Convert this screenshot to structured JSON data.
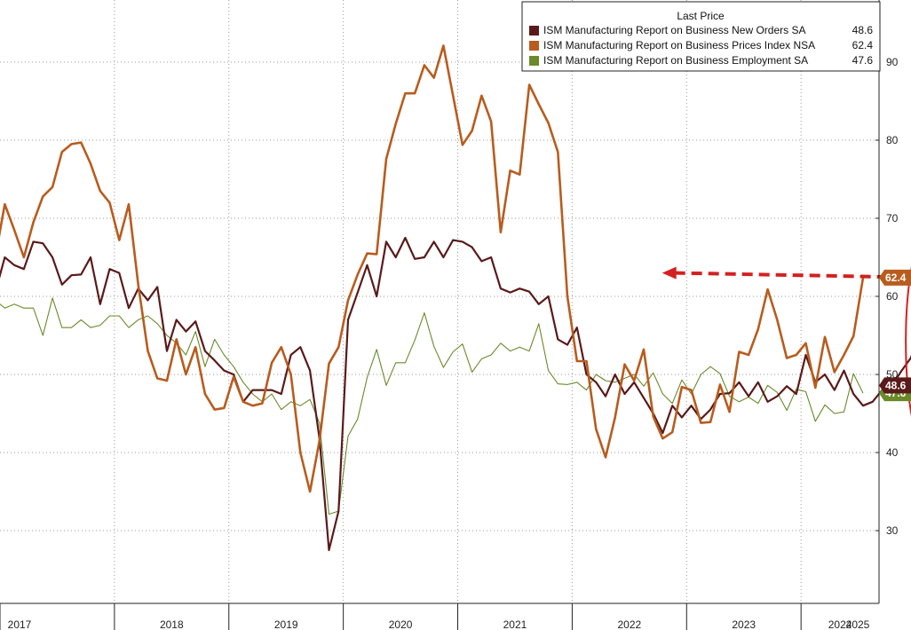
{
  "chart_data": {
    "type": "line",
    "ylim": [
      22,
      95
    ],
    "yticks": [
      30,
      40,
      50,
      60,
      70,
      80,
      90
    ],
    "year_labels": [
      "2017",
      "2018",
      "2019",
      "2020",
      "2021",
      "2022",
      "2023",
      "2024",
      "2025"
    ],
    "legend": {
      "header": "Last Price",
      "placement": "top-right"
    },
    "series": [
      {
        "name": "ISM Manufacturing Report on Business New Orders SA",
        "last": "48.6",
        "color": "#5a1a1a",
        "start": "2016-12",
        "values": [
          60.5,
          65.0,
          64.0,
          63.5,
          67.0,
          66.8,
          65.0,
          61.5,
          62.7,
          62.8,
          65.0,
          59.0,
          63.5,
          63.0,
          58.5,
          61.0,
          59.5,
          61.2,
          53.0,
          57.0,
          55.5,
          56.8,
          53.0,
          51.8,
          50.5,
          50.0,
          46.5,
          48.0,
          48.0,
          48.0,
          47.5,
          52.5,
          53.5,
          50.5,
          41.8,
          27.5,
          32.5,
          57.0,
          60.5,
          64.0,
          60.0,
          67.0,
          65.0,
          67.5,
          64.8,
          65.0,
          67.0,
          65.0,
          67.2,
          67.0,
          66.3,
          64.5,
          65.0,
          61.0,
          60.5,
          61.0,
          60.6,
          59.0,
          60.0,
          54.5,
          53.8,
          56.0,
          50.0,
          49.0,
          47.2,
          50.0,
          47.5,
          49.0,
          47.0,
          45.0,
          42.5,
          46.0,
          44.5,
          46.0,
          44.3,
          45.5,
          47.5,
          47.6,
          49.0,
          47.2,
          49.0,
          46.5,
          47.2,
          48.5,
          47.5,
          52.5,
          49.0,
          50.0,
          48.0,
          50.5,
          47.5,
          46.0,
          46.5,
          48.0,
          48.5,
          50.4,
          52.1,
          55.1,
          48.6
        ]
      },
      {
        "name": "ISM Manufacturing Report on Business Prices Index NSA",
        "last": "62.4",
        "color": "#b85c1e",
        "start": "2016-12",
        "values": [
          65.0,
          71.8,
          68.5,
          65.0,
          69.5,
          72.8,
          74.0,
          78.5,
          79.5,
          79.7,
          77.0,
          73.5,
          72.0,
          67.2,
          71.8,
          61.5,
          53.0,
          49.5,
          49.2,
          54.5,
          50.0,
          53.5,
          47.5,
          45.5,
          45.7,
          49.7,
          46.5,
          46.0,
          46.3,
          51.5,
          53.5,
          50.0,
          40.0,
          35.0,
          41.5,
          51.4,
          53.5,
          59.5,
          62.8,
          65.5,
          65.4,
          77.6,
          82.1,
          86.0,
          86.0,
          89.6,
          88.0,
          92.1,
          85.7,
          79.4,
          81.2,
          85.7,
          82.4,
          68.2,
          76.1,
          75.6,
          87.1,
          84.6,
          82.2,
          78.5,
          60.0,
          51.7,
          51.7,
          43.0,
          39.4,
          44.5,
          51.3,
          49.2,
          53.2,
          44.6,
          41.8,
          42.6,
          48.4,
          48.0,
          43.8,
          43.9,
          48.7,
          45.2,
          52.9,
          52.5,
          55.8,
          60.9,
          57.0,
          52.1,
          52.5,
          54.0,
          48.3,
          54.8,
          50.3,
          52.5,
          54.9,
          62.4
        ]
      },
      {
        "name": "ISM Manufacturing Report on Business Employment SA",
        "last": "47.6",
        "color": "#6a8a2a",
        "start": "2016-12",
        "values": [
          59.5,
          58.5,
          59.0,
          58.5,
          58.5,
          55.0,
          59.8,
          56.0,
          56.0,
          57.0,
          56.0,
          56.3,
          57.5,
          57.5,
          56.0,
          57.0,
          57.5,
          56.5,
          55.0,
          54.0,
          52.5,
          55.5,
          51.0,
          54.5,
          52.5,
          51.0,
          49.0,
          47.5,
          46.5,
          47.5,
          45.5,
          46.5,
          46.0,
          46.8,
          43.8,
          32.1,
          32.5,
          42.1,
          44.3,
          49.6,
          53.2,
          48.6,
          51.5,
          51.5,
          54.4,
          57.9,
          53.6,
          50.9,
          52.9,
          53.9,
          50.3,
          52.0,
          52.5,
          54.0,
          53.0,
          53.5,
          53.0,
          56.5,
          50.5,
          48.8,
          48.7,
          49.0,
          48.0,
          50.0,
          49.2,
          49.0,
          49.5,
          50.0,
          48.5,
          50.2,
          47.5,
          46.3,
          49.3,
          47.5,
          50.0,
          51.0,
          50.1,
          47.2,
          46.5,
          47.1,
          46.3,
          48.6,
          47.7,
          45.4,
          48.1,
          47.8,
          44.0,
          46.1,
          45.0,
          45.2,
          50.1,
          47.6
        ]
      }
    ],
    "annotation": {
      "arrow_from": {
        "date": "2022-09",
        "value": 63.0
      },
      "arrow_to": {
        "date": "2025-02",
        "value": 62.4
      },
      "ellipse_around": "2025-02",
      "color": "#d42020"
    }
  }
}
